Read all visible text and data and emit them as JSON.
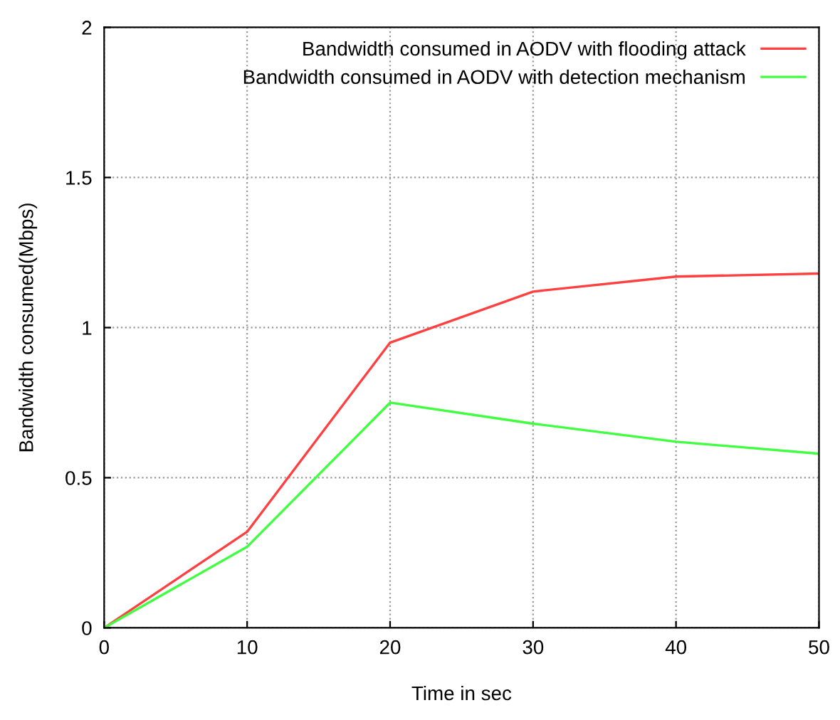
{
  "chart_data": {
    "type": "line",
    "xlabel": "Time in sec",
    "ylabel": "Bandwidth consumed(Mbps)",
    "x": [
      0,
      10,
      20,
      30,
      40,
      50
    ],
    "series": [
      {
        "name": "Bandwidth consumed in AODV with flooding attack",
        "color": "#ff4040",
        "values": [
          0,
          0.32,
          0.95,
          1.12,
          1.17,
          1.18
        ]
      },
      {
        "name": "Bandwidth consumed in AODV with detection mechanism",
        "color": "#40ff40",
        "values": [
          0,
          0.27,
          0.75,
          0.68,
          0.62,
          0.58
        ]
      }
    ],
    "xlim": [
      0,
      50
    ],
    "xticks": [
      0,
      10,
      20,
      30,
      40,
      50
    ],
    "ylim": [
      0,
      2
    ],
    "yticks": [
      0,
      0.5,
      1,
      1.5,
      2
    ],
    "grid": true,
    "legend": "top right",
    "marker": "none",
    "line_style": "solid"
  }
}
